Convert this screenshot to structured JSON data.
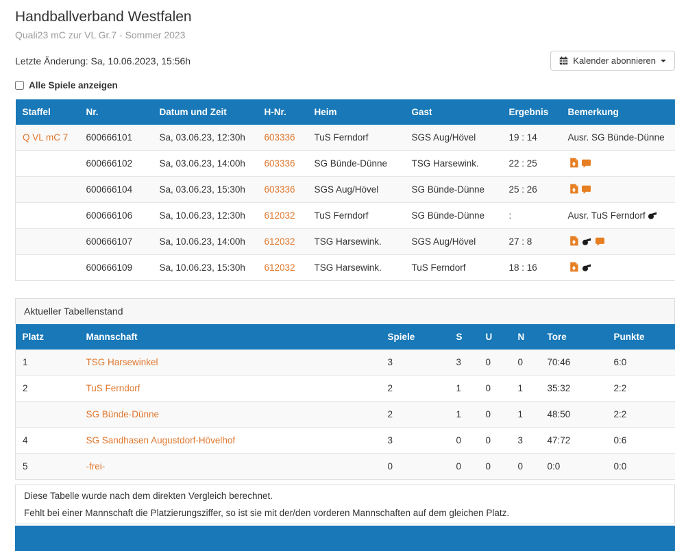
{
  "page": {
    "title": "Handballverband Westfalen",
    "subtitle": "Quali23 mC zur VL Gr.7 - Sommer 2023",
    "last_change": "Letzte Änderung: Sa, 10.06.2023, 15:56h",
    "calendar_button_label": "Kalender abonnieren",
    "show_all_games_label": "Alle Spiele anzeigen"
  },
  "icons": {
    "calendar_button": "calendar-icon",
    "button_caret": "caret-down-icon",
    "report": "report-pdf-icon",
    "whistle": "whistle-icon",
    "comment": "comment-bubble-icon"
  },
  "colors": {
    "table_header_blue": "#1878b8",
    "link_orange": "#e0772d",
    "icon_orange": "#e67e22",
    "alt_row_gray": "#f9f9f9"
  },
  "games_table": {
    "columns": [
      "Staffel",
      "Nr.",
      "Datum und Zeit",
      "H-Nr.",
      "Heim",
      "Gast",
      "Ergebnis",
      "Bemerkung"
    ],
    "rows": [
      {
        "staffel": "Q VL mC 7",
        "nr": "600666101",
        "datum": "Sa, 03.06.23, 12:30h",
        "hnr": "603336",
        "heim": "TuS Ferndorf",
        "gast": "SGS Aug/Hövel",
        "ergebnis": "19 : 14",
        "bemerkung": "Ausr. SG Bünde-Dünne",
        "icons": []
      },
      {
        "staffel": "",
        "nr": "600666102",
        "datum": "Sa, 03.06.23, 14:00h",
        "hnr": "603336",
        "heim": "SG Bünde-Dünne",
        "gast": "TSG Harsewink.",
        "ergebnis": "22 : 25",
        "bemerkung": "",
        "icons": [
          "report-pdf",
          "comment"
        ]
      },
      {
        "staffel": "",
        "nr": "600666104",
        "datum": "Sa, 03.06.23, 15:30h",
        "hnr": "603336",
        "heim": "SGS Aug/Hövel",
        "gast": "SG Bünde-Dünne",
        "ergebnis": "25 : 26",
        "bemerkung": "",
        "icons": [
          "report-pdf",
          "comment"
        ]
      },
      {
        "staffel": "",
        "nr": "600666106",
        "datum": "Sa, 10.06.23, 12:30h",
        "hnr": "612032",
        "heim": "TuS Ferndorf",
        "gast": "SG Bünde-Dünne",
        "ergebnis": ":",
        "bemerkung": "Ausr. TuS Ferndorf",
        "icons": [
          "whistle"
        ]
      },
      {
        "staffel": "",
        "nr": "600666107",
        "datum": "Sa, 10.06.23, 14:00h",
        "hnr": "612032",
        "heim": "TSG Harsewink.",
        "gast": "SGS Aug/Hövel",
        "ergebnis": "27 : 8",
        "bemerkung": "",
        "icons": [
          "report-pdf",
          "whistle",
          "comment"
        ]
      },
      {
        "staffel": "",
        "nr": "600666109",
        "datum": "Sa, 10.06.23, 15:30h",
        "hnr": "612032",
        "heim": "TSG Harsewink.",
        "gast": "TuS Ferndorf",
        "ergebnis": "18 : 16",
        "bemerkung": "",
        "icons": [
          "report-pdf",
          "whistle"
        ]
      }
    ]
  },
  "standings": {
    "panel_title": "Aktueller Tabellenstand",
    "columns": [
      "Platz",
      "Mannschaft",
      "Spiele",
      "S",
      "U",
      "N",
      "Tore",
      "Punkte"
    ],
    "rows": [
      {
        "platz": "1",
        "mannschaft": "TSG Harsewinkel",
        "spiele": "3",
        "s": "3",
        "u": "0",
        "n": "0",
        "tore": "70:46",
        "punkte": "6:0"
      },
      {
        "platz": "2",
        "mannschaft": "TuS Ferndorf",
        "spiele": "2",
        "s": "1",
        "u": "0",
        "n": "1",
        "tore": "35:32",
        "punkte": "2:2"
      },
      {
        "platz": "",
        "mannschaft": "SG Bünde-Dünne",
        "spiele": "2",
        "s": "1",
        "u": "0",
        "n": "1",
        "tore": "48:50",
        "punkte": "2:2"
      },
      {
        "platz": "4",
        "mannschaft": "SG Sandhasen Augustdorf-Hövelhof",
        "spiele": "3",
        "s": "0",
        "u": "0",
        "n": "3",
        "tore": "47:72",
        "punkte": "0:6"
      },
      {
        "platz": "5",
        "mannschaft": "-frei-",
        "spiele": "0",
        "s": "0",
        "u": "0",
        "n": "0",
        "tore": "0:0",
        "punkte": "0:0"
      }
    ]
  },
  "footer": {
    "line1": "Diese Tabelle wurde nach dem direkten Vergleich berechnet.",
    "line2": "Fehlt bei einer Mannschaft die Platzierungsziffer, so ist sie mit der/den vorderen Mannschaften auf dem gleichen Platz."
  }
}
